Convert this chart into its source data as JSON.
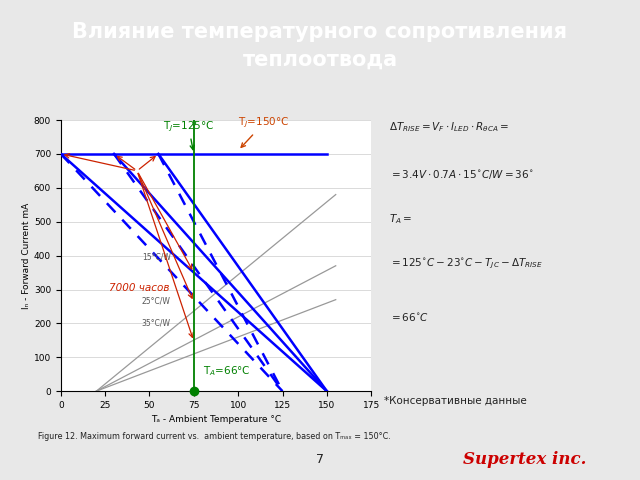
{
  "title": "Влияние температурного сопротивления\nтеплоотвода",
  "title_bg": "#8B1A2A",
  "title_color": "white",
  "slide_bg": "#E8E8E8",
  "plot_bg": "white",
  "xlabel": "Tₐ - Ambient Temperature °C",
  "ylabel": "Iₙ - Forward Current mA",
  "xlim": [
    0,
    175
  ],
  "ylim": [
    0,
    800
  ],
  "xticks": [
    0,
    25,
    50,
    75,
    100,
    125,
    150,
    175
  ],
  "yticks": [
    0,
    100,
    200,
    300,
    400,
    500,
    600,
    700,
    800
  ],
  "label_TJ125": "T$_J$=125°C",
  "label_TJ150": "T$_J$=150°C",
  "label_TA66": "T$_A$=66°C",
  "label_7000": "7000 часов",
  "label_15CW": "15°C/W",
  "label_25CW": "25°C/W",
  "label_35CW": "35°C/W",
  "conservative": "*Консервативные данные",
  "fig_caption": "Figure 12. Maximum forward current vs.  ambient temperature, based on Tₘₐₓ = 150°C.",
  "logo_text": "Supertex inc.",
  "page_num": "7",
  "formula_lines": [
    "$\\Delta T_{RISE} = V_F \\cdot I_{LED} \\cdot R_{\\theta CA} =$",
    "$= 3.4V \\cdot 0.7A \\cdot 15^{\\circ}C / W = 36^{\\circ}$",
    "$T_A =$",
    "$=125^{\\circ}C - 23^{\\circ}C - T_{JC} - \\Delta T_{RISE}$",
    "$= 66^{\\circ}C$"
  ]
}
